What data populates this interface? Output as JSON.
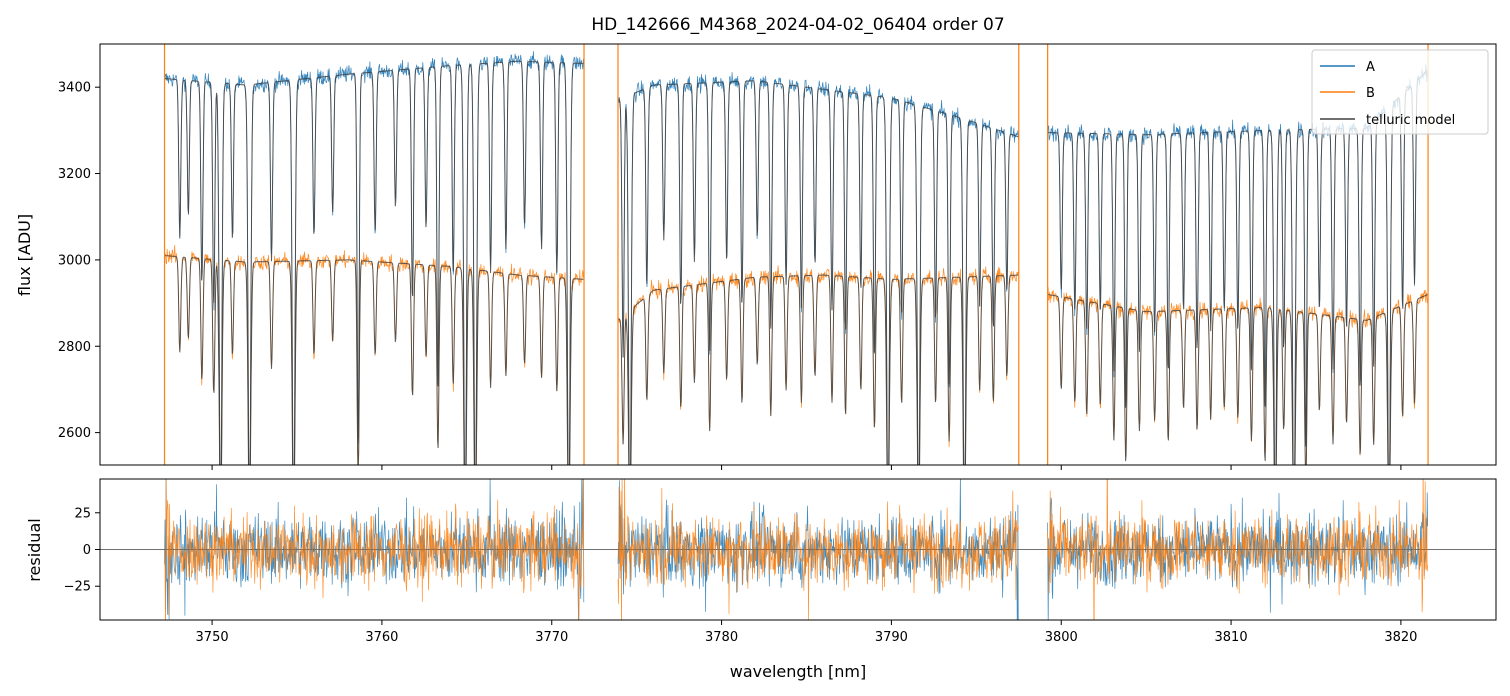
{
  "chart_data": {
    "type": "line",
    "title": "HD_142666_M4368_2024-04-02_06404  order 07",
    "xlabel": "wavelength [nm]",
    "xlim": [
      3743.4,
      3825.6
    ],
    "xticks": [
      3750,
      3760,
      3770,
      3780,
      3790,
      3800,
      3810,
      3820
    ],
    "segments": [
      [
        3747.2,
        3771.9
      ],
      [
        3773.9,
        3797.5
      ],
      [
        3799.2,
        3821.6
      ]
    ],
    "legend": {
      "placement": "upper right",
      "entries": [
        "A",
        "B",
        "telluric model"
      ]
    },
    "colors": {
      "A": "#1f77b4",
      "B": "#ff7f0e",
      "model": "#404040",
      "zero": "#555555"
    },
    "panels": [
      {
        "name": "flux",
        "ylabel": "flux [ADU]",
        "ylim": [
          2525,
          3500
        ],
        "yticks": [
          2600,
          2800,
          3000,
          3200,
          3400
        ],
        "series": [
          {
            "name": "A",
            "continuum": [
              [
                3747.2,
                3420
              ],
              [
                3752,
                3405
              ],
              [
                3758,
                3430
              ],
              [
                3764,
                3450
              ],
              [
                3768,
                3460
              ],
              [
                3771.9,
                3455
              ],
              [
                3773.9,
                3370
              ],
              [
                3776,
                3405
              ],
              [
                3782,
                3415
              ],
              [
                3786,
                3395
              ],
              [
                3790,
                3375
              ],
              [
                3794,
                3330
              ],
              [
                3797.5,
                3285
              ],
              [
                3799.2,
                3295
              ],
              [
                3805,
                3290
              ],
              [
                3812,
                3300
              ],
              [
                3818,
                3305
              ],
              [
                3821.6,
                3440
              ]
            ],
            "noise": 14
          },
          {
            "name": "B",
            "continuum": [
              [
                3747.2,
                3010
              ],
              [
                3752,
                2995
              ],
              [
                3758,
                3000
              ],
              [
                3764,
                2985
              ],
              [
                3768,
                2965
              ],
              [
                3771.9,
                2955
              ],
              [
                3773.9,
                2860
              ],
              [
                3776,
                2930
              ],
              [
                3782,
                2960
              ],
              [
                3786,
                2965
              ],
              [
                3790,
                2955
              ],
              [
                3794,
                2960
              ],
              [
                3797.5,
                2965
              ],
              [
                3799.2,
                2920
              ],
              [
                3805,
                2880
              ],
              [
                3812,
                2890
              ],
              [
                3818,
                2860
              ],
              [
                3821.6,
                2920
              ]
            ],
            "noise": 14
          }
        ]
      },
      {
        "name": "residual",
        "ylabel": "residual",
        "ylim": [
          -48,
          48
        ],
        "yticks": [
          -25,
          0,
          25
        ],
        "noise": 17
      }
    ],
    "lines": [
      [
        3748.1,
        0.35
      ],
      [
        3748.6,
        0.3
      ],
      [
        3749.4,
        0.45
      ],
      [
        3750.1,
        0.5
      ],
      [
        3750.5,
        1.0
      ],
      [
        3751.2,
        0.35
      ],
      [
        3752.2,
        1.0
      ],
      [
        3753.5,
        0.4
      ],
      [
        3754.8,
        1.0
      ],
      [
        3756.0,
        0.35
      ],
      [
        3757.1,
        0.3
      ],
      [
        3758.6,
        0.8
      ],
      [
        3759.6,
        0.35
      ],
      [
        3760.8,
        0.3
      ],
      [
        3761.8,
        0.5
      ],
      [
        3762.6,
        0.35
      ],
      [
        3763.3,
        0.7
      ],
      [
        3764.2,
        0.45
      ],
      [
        3764.9,
        1.0
      ],
      [
        3765.5,
        1.0
      ],
      [
        3766.4,
        0.45
      ],
      [
        3767.3,
        0.4
      ],
      [
        3768.4,
        0.35
      ],
      [
        3769.4,
        0.4
      ],
      [
        3770.3,
        0.45
      ],
      [
        3771.0,
        1.0
      ],
      [
        3774.2,
        0.6
      ],
      [
        3774.6,
        1.0
      ],
      [
        3775.6,
        0.45
      ],
      [
        3776.6,
        0.35
      ],
      [
        3777.6,
        0.5
      ],
      [
        3778.4,
        0.4
      ],
      [
        3779.3,
        0.6
      ],
      [
        3780.3,
        0.4
      ],
      [
        3781.2,
        0.5
      ],
      [
        3782.1,
        0.35
      ],
      [
        3782.9,
        0.55
      ],
      [
        3783.8,
        0.45
      ],
      [
        3784.7,
        0.5
      ],
      [
        3785.5,
        0.4
      ],
      [
        3786.5,
        0.5
      ],
      [
        3787.3,
        0.55
      ],
      [
        3788.2,
        0.45
      ],
      [
        3789.0,
        0.6
      ],
      [
        3789.8,
        1.0
      ],
      [
        3790.6,
        0.5
      ],
      [
        3791.6,
        1.0
      ],
      [
        3792.6,
        0.5
      ],
      [
        3793.4,
        0.65
      ],
      [
        3794.3,
        1.0
      ],
      [
        3795.2,
        0.45
      ],
      [
        3796.0,
        0.5
      ],
      [
        3796.8,
        0.4
      ],
      [
        3800.0,
        0.4
      ],
      [
        3800.8,
        0.45
      ],
      [
        3801.5,
        0.5
      ],
      [
        3802.3,
        0.45
      ],
      [
        3803.1,
        0.6
      ],
      [
        3803.8,
        0.7
      ],
      [
        3804.6,
        0.55
      ],
      [
        3805.5,
        0.5
      ],
      [
        3806.3,
        0.6
      ],
      [
        3807.2,
        0.45
      ],
      [
        3808.0,
        0.55
      ],
      [
        3808.8,
        0.5
      ],
      [
        3809.6,
        0.45
      ],
      [
        3810.4,
        0.5
      ],
      [
        3811.2,
        0.6
      ],
      [
        3812.0,
        0.7
      ],
      [
        3812.6,
        1.0
      ],
      [
        3813.1,
        0.55
      ],
      [
        3813.7,
        1.0
      ],
      [
        3814.4,
        0.8
      ],
      [
        3815.2,
        0.45
      ],
      [
        3816.0,
        0.6
      ],
      [
        3816.8,
        0.5
      ],
      [
        3817.6,
        0.65
      ],
      [
        3818.4,
        0.6
      ],
      [
        3819.3,
        1.0
      ],
      [
        3820.1,
        0.5
      ],
      [
        3820.8,
        0.45
      ]
    ]
  }
}
